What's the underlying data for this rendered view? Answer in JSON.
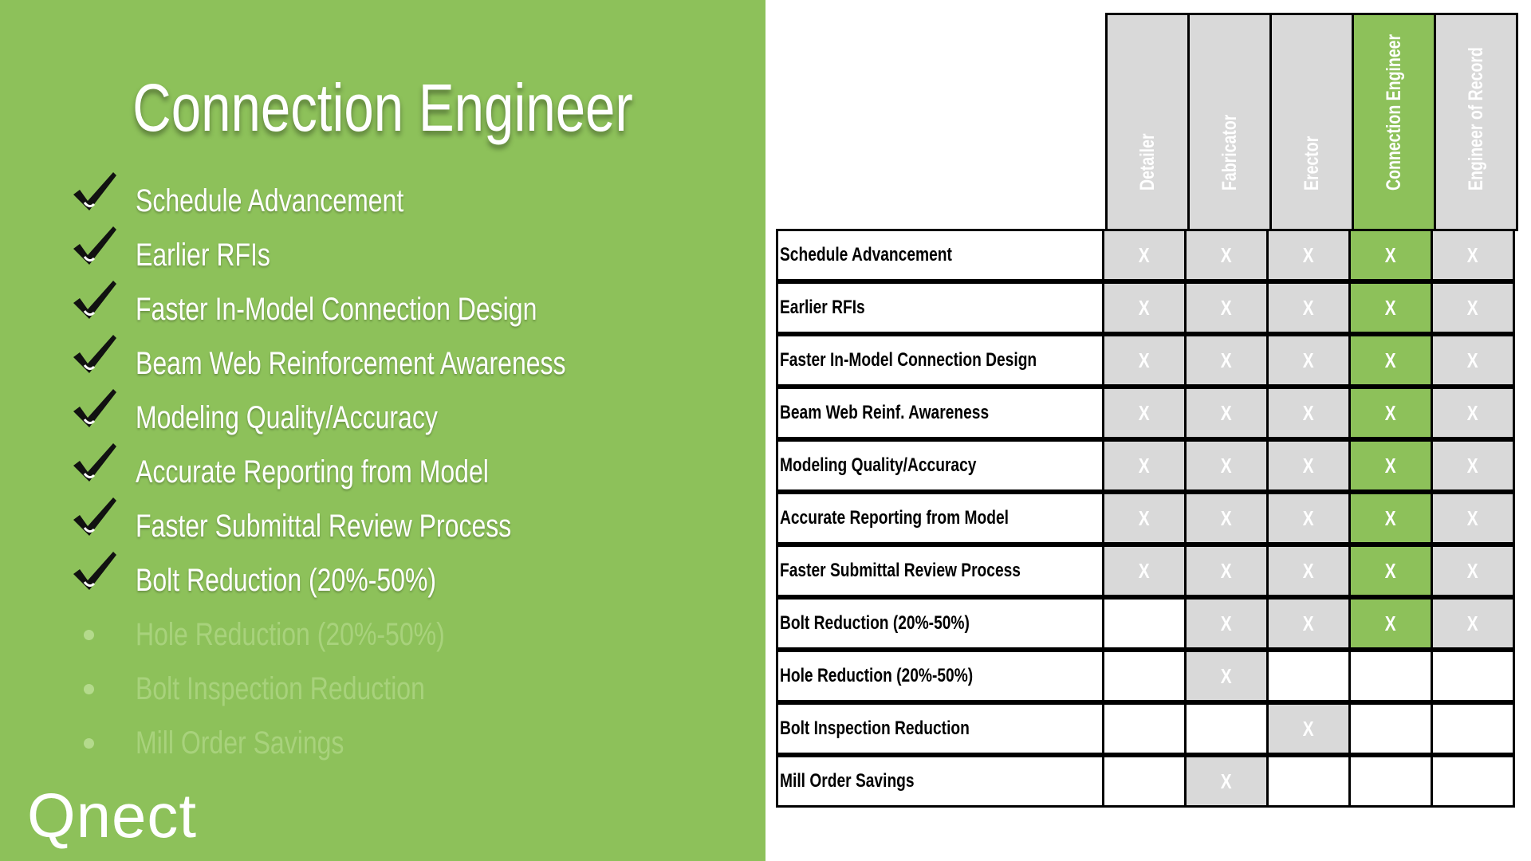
{
  "title": "Connection Engineer",
  "logo_text": "Qnect",
  "colors": {
    "accent_green": "#8dc15a",
    "cell_gray": "#d9d9d9",
    "faded_text": "#a8d27c"
  },
  "benefits": [
    {
      "label": "Schedule Advancement",
      "icon": "checkmark-icon",
      "done": true
    },
    {
      "label": "Earlier RFIs",
      "icon": "checkmark-icon",
      "done": true
    },
    {
      "label": "Faster In-Model Connection Design",
      "icon": "checkmark-icon",
      "done": true
    },
    {
      "label": "Beam Web Reinforcement Awareness",
      "icon": "checkmark-icon",
      "done": true
    },
    {
      "label": "Modeling Quality/Accuracy",
      "icon": "checkmark-icon",
      "done": true
    },
    {
      "label": "Accurate Reporting from Model",
      "icon": "checkmark-icon",
      "done": true
    },
    {
      "label": "Faster Submittal Review Process",
      "icon": "checkmark-icon",
      "done": true
    },
    {
      "label": "Bolt Reduction (20%-50%)",
      "icon": "checkmark-icon",
      "done": true
    },
    {
      "label": "Hole Reduction (20%-50%)",
      "icon": "bullet-dot-icon",
      "done": false
    },
    {
      "label": "Bolt Inspection Reduction",
      "icon": "bullet-dot-icon",
      "done": false
    },
    {
      "label": "Mill Order Savings",
      "icon": "bullet-dot-icon",
      "done": false
    }
  ],
  "matrix": {
    "columns": [
      {
        "label": "Detailer",
        "highlight": false
      },
      {
        "label": "Fabricator",
        "highlight": false
      },
      {
        "label": "Erector",
        "highlight": false
      },
      {
        "label": "Connection Engineer",
        "highlight": true
      },
      {
        "label": "Engineer of Record",
        "highlight": false
      }
    ],
    "mark": "X",
    "rows": [
      {
        "label": "Schedule Advancement",
        "marks": [
          true,
          true,
          true,
          true,
          true
        ]
      },
      {
        "label": "Earlier RFIs",
        "marks": [
          true,
          true,
          true,
          true,
          true
        ]
      },
      {
        "label": "Faster In-Model Connection Design",
        "marks": [
          true,
          true,
          true,
          true,
          true
        ]
      },
      {
        "label": "Beam Web Reinf. Awareness",
        "marks": [
          true,
          true,
          true,
          true,
          true
        ]
      },
      {
        "label": "Modeling Quality/Accuracy",
        "marks": [
          true,
          true,
          true,
          true,
          true
        ]
      },
      {
        "label": "Accurate Reporting from Model",
        "marks": [
          true,
          true,
          true,
          true,
          true
        ]
      },
      {
        "label": "Faster Submittal Review Process",
        "marks": [
          true,
          true,
          true,
          true,
          true
        ]
      },
      {
        "label": "Bolt Reduction (20%-50%)",
        "marks": [
          false,
          true,
          true,
          true,
          true
        ]
      },
      {
        "label": "Hole Reduction (20%-50%)",
        "marks": [
          false,
          true,
          false,
          false,
          false
        ]
      },
      {
        "label": "Bolt Inspection Reduction",
        "marks": [
          false,
          false,
          true,
          false,
          false
        ]
      },
      {
        "label": "Mill Order Savings",
        "marks": [
          false,
          true,
          false,
          false,
          false
        ]
      }
    ]
  }
}
